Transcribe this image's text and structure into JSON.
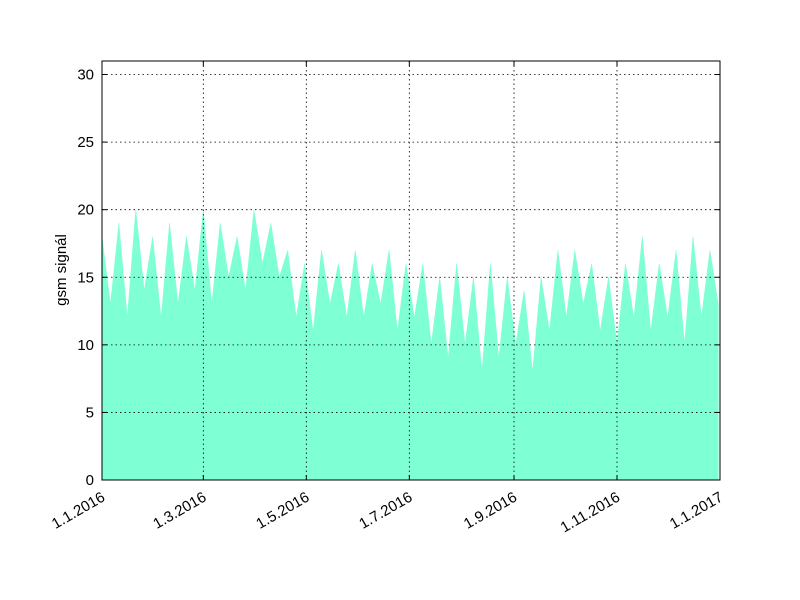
{
  "chart_data": {
    "type": "area",
    "ylabel": "gsm signál",
    "color": "#7fffd4",
    "grid": true,
    "x": [
      "2016-01-01",
      "2016-01-06",
      "2016-01-11",
      "2016-01-16",
      "2016-01-21",
      "2016-01-26",
      "2016-01-31",
      "2016-02-05",
      "2016-02-10",
      "2016-02-15",
      "2016-02-20",
      "2016-02-25",
      "2016-03-01",
      "2016-03-06",
      "2016-03-11",
      "2016-03-16",
      "2016-03-21",
      "2016-03-26",
      "2016-03-31",
      "2016-04-05",
      "2016-04-10",
      "2016-04-15",
      "2016-04-20",
      "2016-04-25",
      "2016-04-30",
      "2016-05-05",
      "2016-05-10",
      "2016-05-15",
      "2016-05-20",
      "2016-05-25",
      "2016-05-30",
      "2016-06-04",
      "2016-06-09",
      "2016-06-14",
      "2016-06-19",
      "2016-06-24",
      "2016-06-29",
      "2016-07-04",
      "2016-07-09",
      "2016-07-14",
      "2016-07-19",
      "2016-07-24",
      "2016-07-29",
      "2016-08-03",
      "2016-08-08",
      "2016-08-13",
      "2016-08-18",
      "2016-08-23",
      "2016-08-28",
      "2016-09-02",
      "2016-09-07",
      "2016-09-12",
      "2016-09-17",
      "2016-09-22",
      "2016-09-27",
      "2016-10-02",
      "2016-10-07",
      "2016-10-12",
      "2016-10-17",
      "2016-10-22",
      "2016-10-27",
      "2016-11-01",
      "2016-11-06",
      "2016-11-11",
      "2016-11-16",
      "2016-11-21",
      "2016-11-26",
      "2016-12-01",
      "2016-12-06",
      "2016-12-11",
      "2016-12-16",
      "2016-12-21",
      "2016-12-26",
      "2016-12-31"
    ],
    "values": [
      18,
      13,
      19,
      12,
      20,
      14,
      18,
      12,
      19,
      13,
      18,
      14,
      20,
      13,
      19,
      15,
      18,
      14,
      20,
      16,
      19,
      15,
      17,
      12,
      16,
      11,
      17,
      13,
      16,
      12,
      17,
      12,
      16,
      13,
      17,
      11,
      16,
      12,
      16,
      10,
      15,
      9,
      16,
      10,
      15,
      8,
      16,
      9,
      15,
      10,
      14,
      8,
      15,
      11,
      17,
      12,
      17,
      13,
      16,
      11,
      15,
      10,
      16,
      12,
      18,
      11,
      16,
      12,
      17,
      10,
      18,
      12,
      17,
      13
    ],
    "xlim": [
      "2016-01-01",
      "2017-01-01"
    ],
    "xticks": [
      {
        "value": "2016-01-01",
        "label": "1.1.2016"
      },
      {
        "value": "2016-03-01",
        "label": "1.3.2016"
      },
      {
        "value": "2016-05-01",
        "label": "1.5.2016"
      },
      {
        "value": "2016-07-01",
        "label": "1.7.2016"
      },
      {
        "value": "2016-09-01",
        "label": "1.9.2016"
      },
      {
        "value": "2016-11-01",
        "label": "1.11.2016"
      },
      {
        "value": "2017-01-01",
        "label": "1.1.2017"
      }
    ],
    "ylim": [
      0,
      31
    ],
    "yticks": [
      0,
      5,
      10,
      15,
      20,
      25,
      30
    ]
  }
}
